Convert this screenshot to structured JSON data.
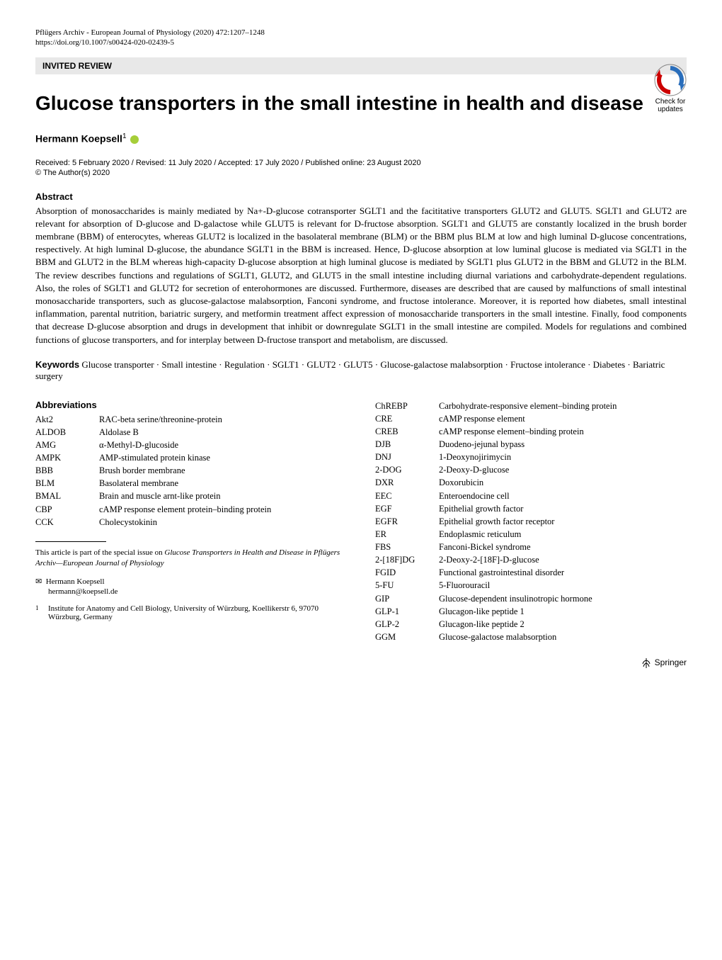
{
  "header": {
    "journal": "Pflügers Archiv - European Journal of Physiology (2020) 472:1207–1248",
    "doi": "https://doi.org/10.1007/s00424-020-02439-5"
  },
  "category": "INVITED REVIEW",
  "checkUpdates": {
    "line1": "Check for",
    "line2": "updates"
  },
  "title": "Glucose transporters in the small intestine in health and disease",
  "author": {
    "name": "Hermann Koepsell",
    "sup": "1"
  },
  "dates": "Received: 5 February 2020 / Revised: 11 July 2020 / Accepted: 17 July 2020 / Published online: 23 August 2020",
  "copyright": "© The Author(s) 2020",
  "abstractHead": "Abstract",
  "abstractBody": "Absorption of monosaccharides is mainly mediated by Na+-D-glucose cotransporter SGLT1 and the facititative transporters GLUT2 and GLUT5. SGLT1 and GLUT2 are relevant for absorption of D-glucose and D-galactose while GLUT5 is relevant for D-fructose absorption. SGLT1 and GLUT5 are constantly localized in the brush border membrane (BBM) of enterocytes, whereas GLUT2 is localized in the basolateral membrane (BLM) or the BBM plus BLM at low and high luminal D-glucose concentrations, respectively. At high luminal D-glucose, the abundance SGLT1 in the BBM is increased. Hence, D-glucose absorption at low luminal glucose is mediated via SGLT1 in the BBM and GLUT2 in the BLM whereas high-capacity D-glucose absorption at high luminal glucose is mediated by SGLT1 plus GLUT2 in the BBM and GLUT2 in the BLM. The review describes functions and regulations of SGLT1, GLUT2, and GLUT5 in the small intestine including diurnal variations and carbohydrate-dependent regulations. Also, the roles of SGLT1 and GLUT2 for secretion of enterohormones are discussed. Furthermore, diseases are described that are caused by malfunctions of small intestinal monosaccharide transporters, such as glucose-galactose malabsorption, Fanconi syndrome, and fructose intolerance. Moreover, it is reported how diabetes, small intestinal inflammation, parental nutrition, bariatric surgery, and metformin treatment affect expression of monosaccharide transporters in the small intestine. Finally, food components that decrease D-glucose absorption and drugs in development that inhibit or downregulate SGLT1 in the small intestine are compiled. Models for regulations and combined functions of glucose transporters, and for interplay between D-fructose transport and metabolism, are discussed.",
  "keywordsHead": "Keywords",
  "keywordsBody": "Glucose transporter · Small intestine · Regulation · SGLT1 · GLUT2 · GLUT5 · Glucose-galactose malabsorption · Fructose intolerance · Diabetes · Bariatric surgery",
  "abbrevHead": "Abbreviations",
  "abbrevLeft": [
    {
      "k": "Akt2",
      "v": "RAC-beta serine/threonine-protein"
    },
    {
      "k": "ALDOB",
      "v": "Aldolase B"
    },
    {
      "k": "AMG",
      "v": "α-Methyl-D-glucoside"
    },
    {
      "k": "AMPK",
      "v": "AMP-stimulated protein kinase"
    },
    {
      "k": "BBB",
      "v": "Brush border membrane"
    },
    {
      "k": "BLM",
      "v": "Basolateral membrane"
    },
    {
      "k": "BMAL",
      "v": "Brain and muscle arnt-like protein"
    },
    {
      "k": "CBP",
      "v": "cAMP response element protein–binding protein"
    },
    {
      "k": "CCK",
      "v": "Cholecystokinin"
    }
  ],
  "abbrevRight": [
    {
      "k": "ChREBP",
      "v": "Carbohydrate-responsive element–binding protein"
    },
    {
      "k": "CRE",
      "v": "cAMP response element"
    },
    {
      "k": "CREB",
      "v": "cAMP response element–binding protein"
    },
    {
      "k": "DJB",
      "v": "Duodeno-jejunal bypass"
    },
    {
      "k": "DNJ",
      "v": "1-Deoxynojirimycin"
    },
    {
      "k": "2-DOG",
      "v": "2-Deoxy-D-glucose"
    },
    {
      "k": "DXR",
      "v": "Doxorubicin"
    },
    {
      "k": "EEC",
      "v": "Enteroendocine cell"
    },
    {
      "k": "EGF",
      "v": "Epithelial growth factor"
    },
    {
      "k": "EGFR",
      "v": "Epithelial growth factor receptor"
    },
    {
      "k": "ER",
      "v": "Endoplasmic reticulum"
    },
    {
      "k": "FBS",
      "v": "Fanconi-Bickel syndrome"
    },
    {
      "k": "2-[18F]DG",
      "v": "2-Deoxy-2-[18F]-D-glucose"
    },
    {
      "k": "FGID",
      "v": "Functional gastrointestinal disorder"
    },
    {
      "k": "5-FU",
      "v": "5-Fluorouracil"
    },
    {
      "k": "GIP",
      "v": "Glucose-dependent insulinotropic hormone"
    },
    {
      "k": "GLP-1",
      "v": "Glucagon-like peptide 1"
    },
    {
      "k": "GLP-2",
      "v": "Glucagon-like peptide 2"
    },
    {
      "k": "GGM",
      "v": "Glucose-galactose malabsorption"
    }
  ],
  "footnote": {
    "line1": "This article is part of the special issue on ",
    "italic": "Glucose Transporters in Health and Disease in Pflügers Archiv—European Journal of Physiology"
  },
  "corr": {
    "symbol": "✉",
    "name": "Hermann Koepsell",
    "email": "hermann@koepsell.de"
  },
  "affil": {
    "num": "1",
    "text": "Institute for Anatomy and Cell Biology, University of Würzburg, Koellikerstr 6, 97070 Würzburg, Germany"
  },
  "publisher": "Springer",
  "colors": {
    "categoryBg": "#e8e8e8",
    "orcid": "#a6ce39",
    "updatesBlue": "#2a6ebb"
  }
}
